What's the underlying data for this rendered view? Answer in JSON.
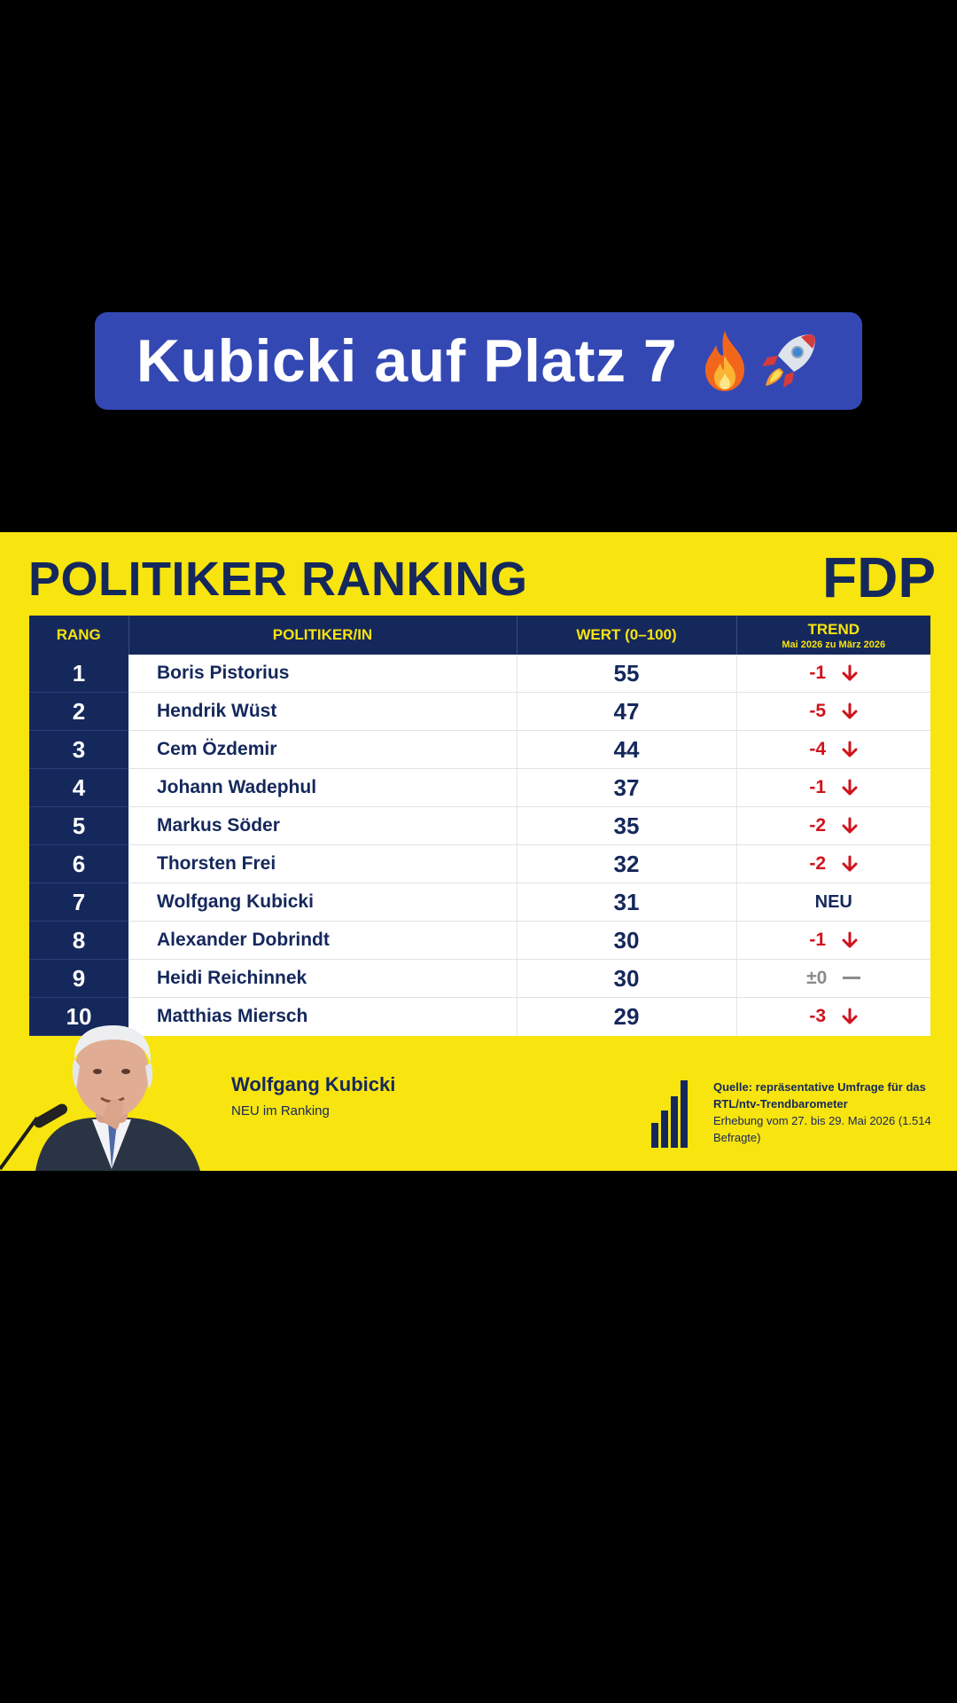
{
  "caption": {
    "text": "Kubicki auf Platz 7",
    "emoji_icons": [
      "fire-icon",
      "rocket-icon"
    ]
  },
  "card": {
    "title": "POLITIKER RANKING",
    "party": "FDP",
    "colors": {
      "background": "#f8e40e",
      "navy": "#15285c",
      "down": "#d0121b",
      "neutral": "#8b8b8b"
    },
    "headers": {
      "rank": "RANG",
      "name": "POLITIKER/IN",
      "value": "WERT (0–100)",
      "trend": "TREND",
      "trend_sub": "Mai 2026 zu März 2026"
    },
    "rows": [
      {
        "rank": "1",
        "name": "Boris Pistorius",
        "value": "55",
        "trend": "-1",
        "icon": "arrow-down-icon",
        "style": "down"
      },
      {
        "rank": "2",
        "name": "Hendrik Wüst",
        "value": "47",
        "trend": "-5",
        "icon": "arrow-down-icon",
        "style": "down"
      },
      {
        "rank": "3",
        "name": "Cem Özdemir",
        "value": "44",
        "trend": "-4",
        "icon": "arrow-down-icon",
        "style": "down"
      },
      {
        "rank": "4",
        "name": "Johann Wadephul",
        "value": "37",
        "trend": "-1",
        "icon": "arrow-down-icon",
        "style": "down"
      },
      {
        "rank": "5",
        "name": "Markus Söder",
        "value": "35",
        "trend": "-2",
        "icon": "arrow-down-icon",
        "style": "down"
      },
      {
        "rank": "6",
        "name": "Thorsten Frei",
        "value": "32",
        "trend": "-2",
        "icon": "arrow-down-icon",
        "style": "down"
      },
      {
        "rank": "7",
        "name": "Wolfgang Kubicki",
        "value": "31",
        "trend": "NEU",
        "icon": "",
        "style": "new"
      },
      {
        "rank": "8",
        "name": "Alexander Dobrindt",
        "value": "30",
        "trend": "-1",
        "icon": "arrow-down-icon",
        "style": "down"
      },
      {
        "rank": "9",
        "name": "Heidi Reichinnek",
        "value": "30",
        "trend": "±0",
        "icon": "dash-icon",
        "style": "neutral"
      },
      {
        "rank": "10",
        "name": "Matthias Miersch",
        "value": "29",
        "trend": "-3",
        "icon": "arrow-down-icon",
        "style": "down"
      }
    ],
    "featured": {
      "name": "Wolfgang Kubicki",
      "note": "NEU im Ranking"
    },
    "source": {
      "line1": "Quelle: repräsentative Umfrage für das RTL/ntv-Trendbarometer",
      "line2": "Erhebung vom 27. bis 29. Mai 2026 (1.514 Befragte)"
    }
  }
}
